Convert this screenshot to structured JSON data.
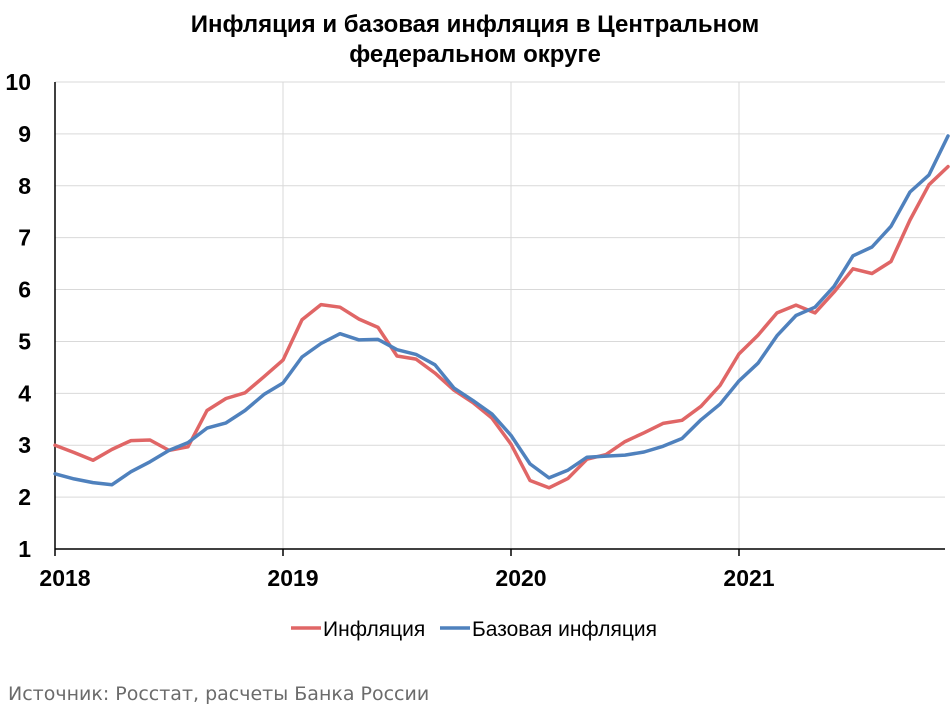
{
  "chart_data": {
    "type": "line",
    "title_line1": "Инфляция и базовая инфляция в Центральном",
    "title_line2": "федеральном округе",
    "xlabel": "",
    "ylabel": "",
    "ylim": [
      1,
      10
    ],
    "yticks": [
      1,
      2,
      3,
      4,
      5,
      6,
      7,
      8,
      9,
      10
    ],
    "x_tick_labels": [
      "2018",
      "2019",
      "2020",
      "2021"
    ],
    "xlim": [
      "2018-01",
      "2021-12"
    ],
    "grid": true,
    "legend_position": "bottom",
    "series": [
      {
        "name": "Инфляция",
        "color": "#e06666",
        "x": [
          "2018-01",
          "2018-02",
          "2018-03",
          "2018-04",
          "2018-05",
          "2018-06",
          "2018-07",
          "2018-08",
          "2018-09",
          "2018-10",
          "2018-11",
          "2018-12",
          "2019-01",
          "2019-02",
          "2019-03",
          "2019-04",
          "2019-05",
          "2019-06",
          "2019-07",
          "2019-08",
          "2019-09",
          "2019-10",
          "2019-11",
          "2019-12",
          "2020-01",
          "2020-02",
          "2020-03",
          "2020-04",
          "2020-05",
          "2020-06",
          "2020-07",
          "2020-08",
          "2020-09",
          "2020-10",
          "2020-11",
          "2020-12",
          "2021-01",
          "2021-02",
          "2021-03",
          "2021-04",
          "2021-05",
          "2021-06",
          "2021-07",
          "2021-08",
          "2021-09",
          "2021-10",
          "2021-11",
          "2021-12"
        ],
        "values": [
          3.0,
          2.86,
          2.71,
          2.92,
          3.09,
          3.1,
          2.9,
          2.97,
          3.67,
          3.9,
          4.01,
          4.32,
          4.64,
          5.42,
          5.71,
          5.66,
          5.43,
          5.27,
          4.72,
          4.66,
          4.39,
          4.06,
          3.82,
          3.52,
          3.02,
          2.32,
          2.18,
          2.36,
          2.73,
          2.82,
          3.07,
          3.24,
          3.42,
          3.48,
          3.75,
          4.15,
          4.76,
          5.12,
          5.55,
          5.7,
          5.55,
          5.95,
          6.4,
          6.31,
          6.54,
          7.34,
          8.02,
          8.37
        ]
      },
      {
        "name": "Базовая инфляция",
        "color": "#4f81bd",
        "x": [
          "2018-01",
          "2018-02",
          "2018-03",
          "2018-04",
          "2018-05",
          "2018-06",
          "2018-07",
          "2018-08",
          "2018-09",
          "2018-10",
          "2018-11",
          "2018-12",
          "2019-01",
          "2019-02",
          "2019-03",
          "2019-04",
          "2019-05",
          "2019-06",
          "2019-07",
          "2019-08",
          "2019-09",
          "2019-10",
          "2019-11",
          "2019-12",
          "2020-01",
          "2020-02",
          "2020-03",
          "2020-04",
          "2020-05",
          "2020-06",
          "2020-07",
          "2020-08",
          "2020-09",
          "2020-10",
          "2020-11",
          "2020-12",
          "2021-01",
          "2021-02",
          "2021-03",
          "2021-04",
          "2021-05",
          "2021-06",
          "2021-07",
          "2021-08",
          "2021-09",
          "2021-10",
          "2021-11",
          "2021-12"
        ],
        "values": [
          2.45,
          2.35,
          2.28,
          2.24,
          2.49,
          2.68,
          2.9,
          3.05,
          3.33,
          3.43,
          3.67,
          3.98,
          4.2,
          4.7,
          4.96,
          5.15,
          5.03,
          5.04,
          4.84,
          4.75,
          4.55,
          4.1,
          3.86,
          3.6,
          3.19,
          2.64,
          2.37,
          2.52,
          2.77,
          2.79,
          2.81,
          2.87,
          2.98,
          3.13,
          3.49,
          3.79,
          4.24,
          4.58,
          5.11,
          5.5,
          5.66,
          6.06,
          6.65,
          6.82,
          7.22,
          7.88,
          8.21,
          8.96
        ]
      }
    ]
  },
  "source_note": "Источник: Росстат, расчеты Банка России"
}
